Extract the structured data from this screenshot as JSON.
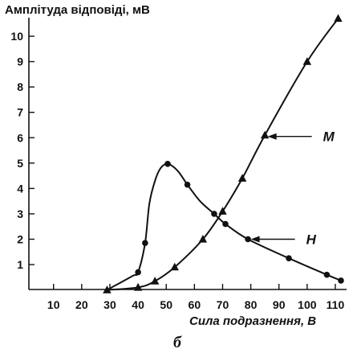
{
  "chart_data": {
    "type": "line",
    "ylabel": "Амплітуда відповіді, мВ",
    "xlabel": "Сила подразнення, В",
    "panel_label": "б",
    "xlim": [
      0,
      113
    ],
    "ylim": [
      0,
      11
    ],
    "xticks": [
      10,
      20,
      30,
      40,
      50,
      60,
      70,
      80,
      90,
      100,
      110
    ],
    "yticks": [
      1,
      2,
      3,
      4,
      5,
      6,
      7,
      8,
      9,
      10
    ],
    "series": [
      {
        "name": "М",
        "marker": "triangle",
        "x": [
          29,
          40,
          46,
          53,
          63,
          70,
          77,
          85,
          100
        ],
        "y": [
          0,
          0.1,
          0.35,
          0.9,
          2.0,
          3.1,
          4.4,
          6.1,
          9.0
        ],
        "curve_x": [
          29,
          40,
          46,
          53,
          63,
          70,
          77,
          85,
          100,
          111
        ],
        "curve_y": [
          0,
          0.1,
          0.35,
          0.9,
          2.0,
          3.1,
          4.4,
          6.1,
          9.0,
          10.7
        ],
        "end_marker": {
          "x": 111,
          "y": 10.7
        }
      },
      {
        "name": "Н",
        "marker": "circle",
        "x": [
          40,
          42.5,
          50.5,
          57.5,
          67,
          71,
          79,
          93.5,
          107,
          112
        ],
        "y": [
          0.7,
          1.85,
          4.97,
          4.15,
          3.0,
          2.6,
          2.0,
          1.25,
          0.6,
          0.37
        ],
        "curve_x": [
          29,
          38,
          40,
          42.5,
          44,
          46,
          48,
          50.5,
          54,
          57.5,
          62,
          67,
          71,
          79,
          93.5,
          107,
          112
        ],
        "curve_y": [
          0,
          0.55,
          0.7,
          1.85,
          3.4,
          4.3,
          4.8,
          4.97,
          4.7,
          4.15,
          3.5,
          3.0,
          2.6,
          2.0,
          1.25,
          0.6,
          0.37
        ]
      }
    ],
    "annotations": [
      {
        "label": "М",
        "target": {
          "x": 86,
          "y": 6.05
        }
      },
      {
        "label": "Н",
        "target": {
          "x": 80,
          "y": 2.0
        }
      }
    ]
  }
}
